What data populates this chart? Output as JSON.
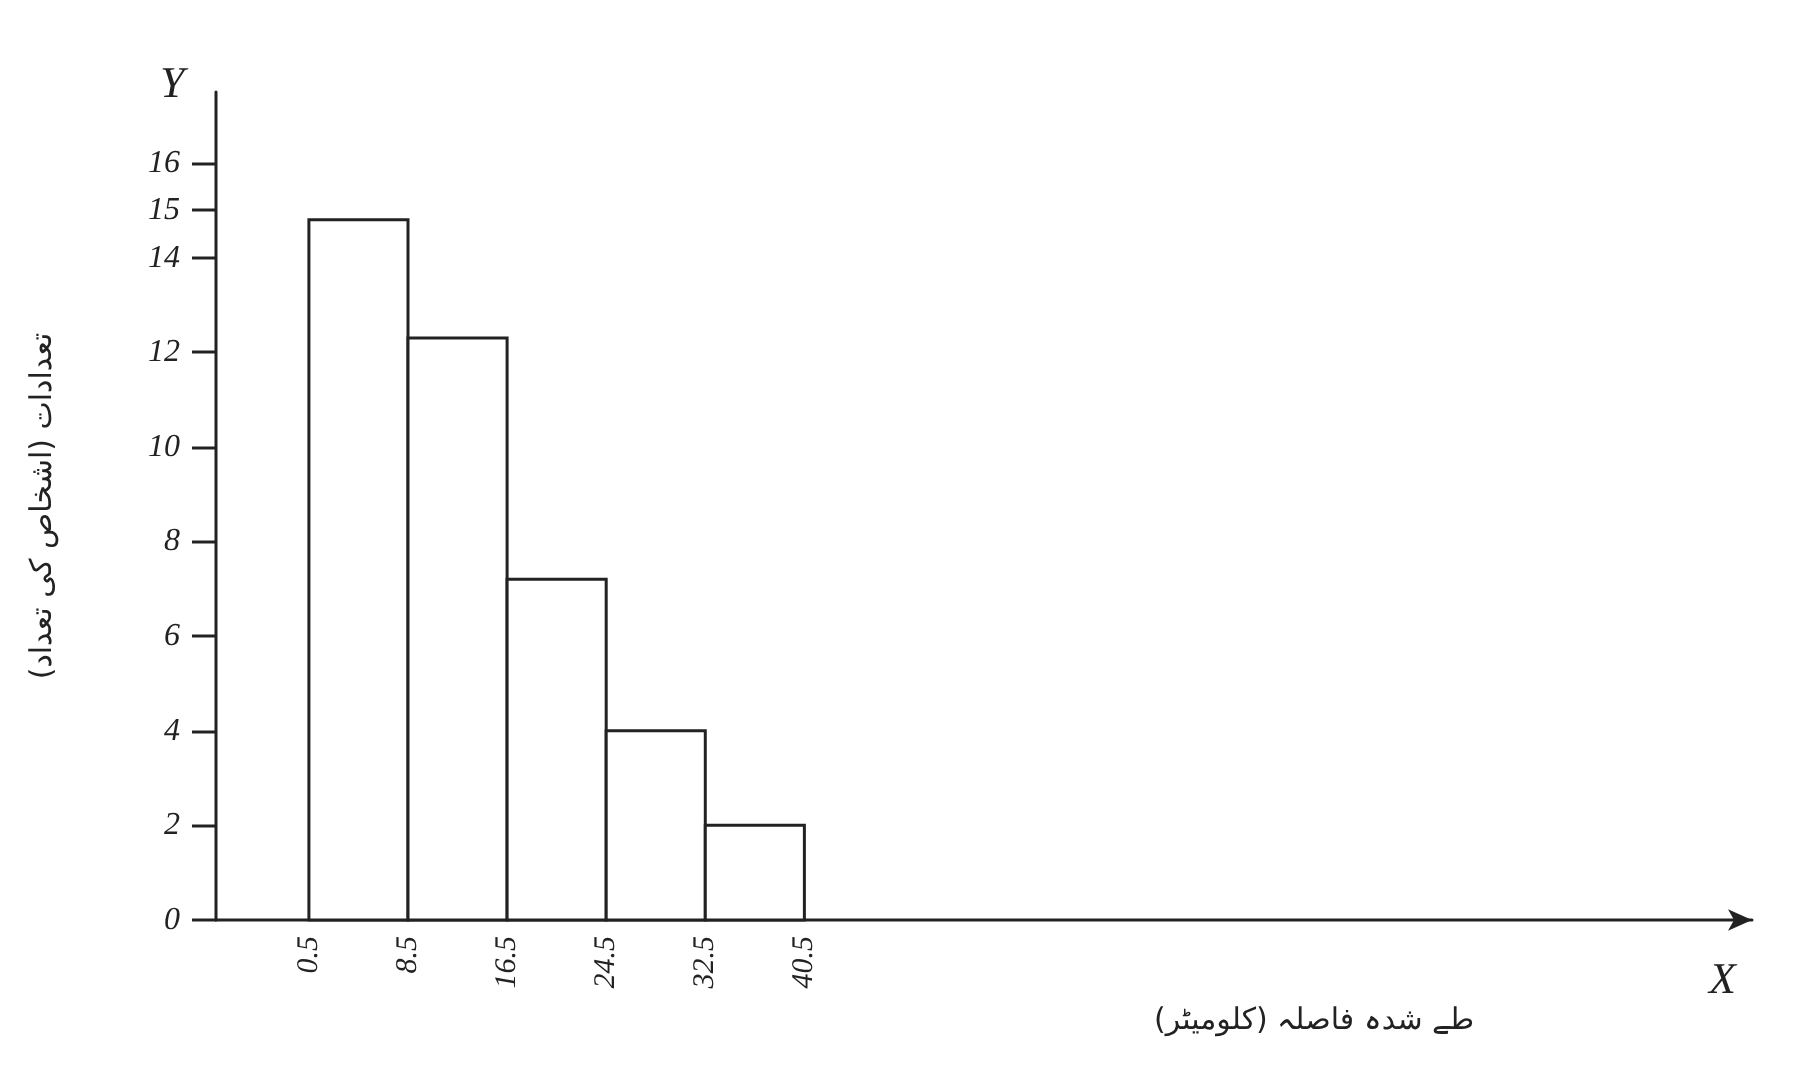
{
  "chart_data": {
    "type": "histogram",
    "xlabel": "طے شدہ فاصلہ (کلومیٹر)",
    "ylabel": "تعدادات (اشخاص کی تعداد)",
    "annotations": [
      "X",
      "Y"
    ],
    "bins": [
      0.5,
      8.5,
      16.5,
      24.5,
      32.5,
      40.5
    ],
    "values": [
      14.8,
      12.3,
      7.2,
      4,
      2
    ],
    "color": "#ffffff",
    "xlim": [
      -7,
      117
    ],
    "xticks": [
      0.5,
      8.5,
      16.5,
      24.5,
      32.5,
      40.5
    ],
    "ylim": [
      0,
      17.5
    ],
    "yticks": [
      0,
      2,
      4,
      6,
      8,
      10,
      12,
      14,
      15,
      16
    ],
    "grid": false
  }
}
